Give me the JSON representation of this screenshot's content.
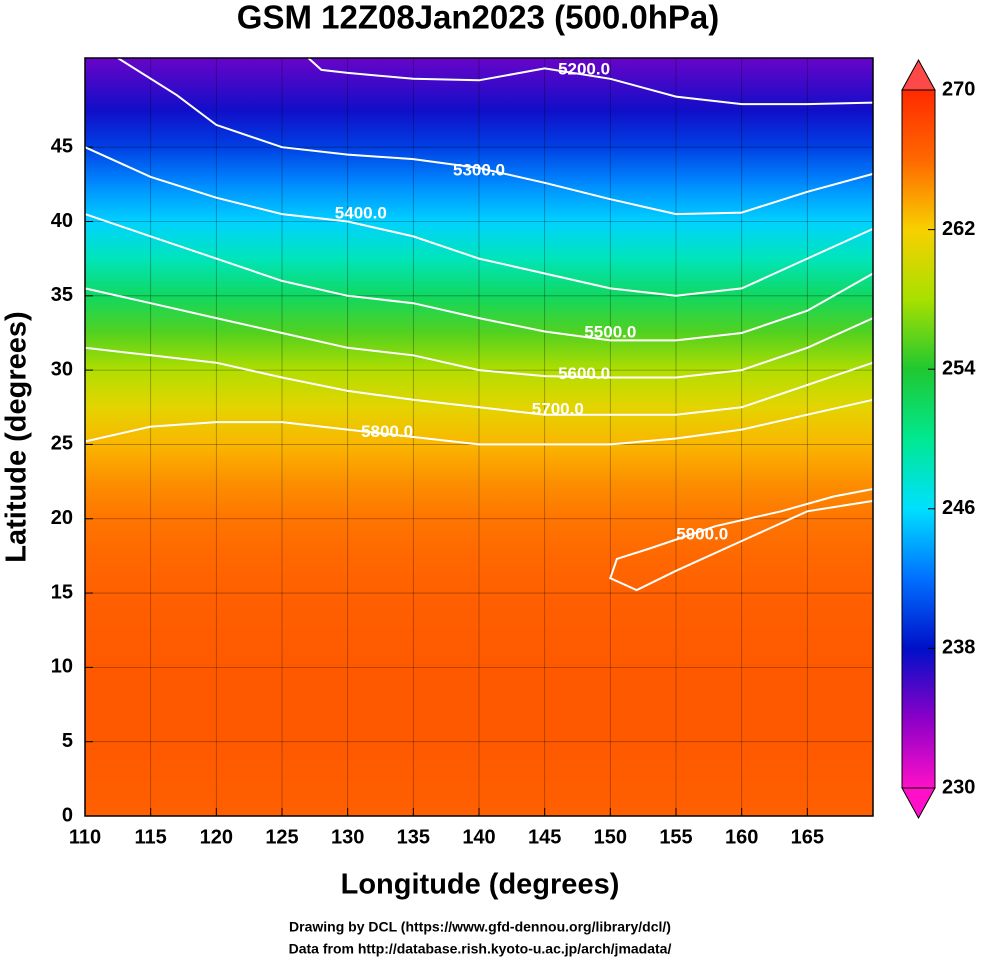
{
  "chart_data": {
    "type": "contour-map",
    "title": "GSM 12Z08Jan2023 (500.0hPa)",
    "x_label": "Longitude (degrees)",
    "y_label": "Latitude  (degrees)",
    "xlim": [
      110,
      170
    ],
    "ylim": [
      0,
      51
    ],
    "xticks": [
      110,
      115,
      120,
      125,
      130,
      135,
      140,
      145,
      150,
      155,
      160,
      165
    ],
    "yticks": [
      0,
      5,
      10,
      15,
      20,
      25,
      30,
      35,
      40,
      45
    ],
    "field": {
      "lat": [
        0,
        5,
        10,
        15,
        17.5,
        20,
        22.5,
        25,
        27.5,
        30,
        32.5,
        35,
        37.5,
        40,
        42.5,
        45,
        47.5,
        51
      ],
      "values": [
        266.5,
        267,
        267,
        266.5,
        266,
        265.5,
        264.5,
        263,
        261,
        258.5,
        255.5,
        252,
        248.5,
        245.5,
        243,
        240,
        237.5,
        235
      ]
    },
    "colorbar": {
      "lim": [
        230,
        270
      ],
      "ticks": [
        230,
        238,
        246,
        254,
        262,
        270
      ],
      "colors": [
        "#ff10c8",
        "#8a00c8",
        "#0010c8",
        "#0070ff",
        "#00e0ff",
        "#00e890",
        "#20c830",
        "#a8e000",
        "#f8d000",
        "#ff6800",
        "#ff2a00"
      ]
    },
    "contours": [
      {
        "level": {
          "value": 5200,
          "label": "5200.0"
        },
        "lon": [
          127,
          128,
          130,
          135,
          140,
          145,
          150,
          155,
          160,
          165,
          170
        ],
        "lat": [
          51,
          50.2,
          50,
          49.6,
          49.5,
          50.3,
          49.6,
          48.4,
          47.9,
          47.9,
          48
        ],
        "label_at": [
          148,
          50.2
        ]
      },
      {
        "level": {
          "value": 5300,
          "label": "5300.0"
        },
        "lon": [
          112.5,
          117,
          120,
          125,
          130,
          135,
          140,
          145,
          150,
          155,
          160,
          165,
          170
        ],
        "lat": [
          51,
          48.5,
          46.5,
          45,
          44.5,
          44.2,
          43.6,
          42.6,
          41.5,
          40.5,
          40.6,
          42,
          43.2
        ],
        "label_at": [
          140,
          43.4
        ]
      },
      {
        "level": {
          "value": 5400,
          "label": "5400.0"
        },
        "lon": [
          110,
          115,
          120,
          125,
          130,
          135,
          140,
          145,
          150,
          155,
          160,
          165,
          170
        ],
        "lat": [
          45,
          43,
          41.6,
          40.5,
          40,
          39,
          37.5,
          36.5,
          35.5,
          35,
          35.5,
          37.5,
          39.5
        ],
        "label_at": [
          131,
          40.5
        ]
      },
      {
        "level": {
          "value": 5500,
          "label": "5500.0"
        },
        "lon": [
          110,
          115,
          120,
          125,
          130,
          135,
          140,
          145,
          150,
          155,
          160,
          165,
          170
        ],
        "lat": [
          40.5,
          39,
          37.5,
          36,
          35,
          34.5,
          33.5,
          32.6,
          32,
          32,
          32.5,
          34,
          36.5
        ],
        "label_at": [
          150,
          32.5
        ]
      },
      {
        "level": {
          "value": 5600,
          "label": "5600.0"
        },
        "lon": [
          110,
          115,
          120,
          125,
          130,
          135,
          140,
          145,
          150,
          155,
          160,
          165,
          170
        ],
        "lat": [
          35.5,
          34.5,
          33.5,
          32.5,
          31.5,
          31,
          30,
          29.6,
          29.5,
          29.5,
          30,
          31.5,
          33.5
        ],
        "label_at": [
          148,
          29.7
        ]
      },
      {
        "level": {
          "value": 5700,
          "label": "5700.0"
        },
        "lon": [
          110,
          115,
          120,
          125,
          130,
          135,
          140,
          145,
          150,
          155,
          160,
          165,
          170
        ],
        "lat": [
          31.5,
          31,
          30.5,
          29.5,
          28.6,
          28,
          27.5,
          27,
          27,
          27,
          27.5,
          29,
          30.5
        ],
        "label_at": [
          146,
          27.3
        ]
      },
      {
        "level": {
          "value": 5800,
          "label": "5800.0"
        },
        "lon": [
          110,
          115,
          120,
          125,
          130,
          135,
          140,
          145,
          150,
          155,
          160,
          165,
          170
        ],
        "lat": [
          25.2,
          26.2,
          26.5,
          26.5,
          26,
          25.5,
          25,
          25,
          25,
          25.4,
          26,
          27,
          28
        ],
        "label_at": [
          133,
          25.8
        ]
      },
      {
        "level": {
          "value": 5900,
          "label": "5900.0"
        },
        "lon": [
          170,
          165,
          160,
          155,
          152,
          150,
          150.5,
          153,
          158,
          163,
          167,
          170
        ],
        "lat": [
          21.2,
          20.5,
          18.5,
          16.5,
          15.2,
          16,
          17.3,
          18,
          19.5,
          20.5,
          21.5,
          22
        ],
        "label_at": [
          157,
          18.9
        ]
      }
    ],
    "credits": [
      "Drawing by DCL (https://www.gfd-dennou.org/library/dcl/)",
      "Data from http://database.rish.kyoto-u.ac.jp/arch/jmadata/"
    ]
  }
}
